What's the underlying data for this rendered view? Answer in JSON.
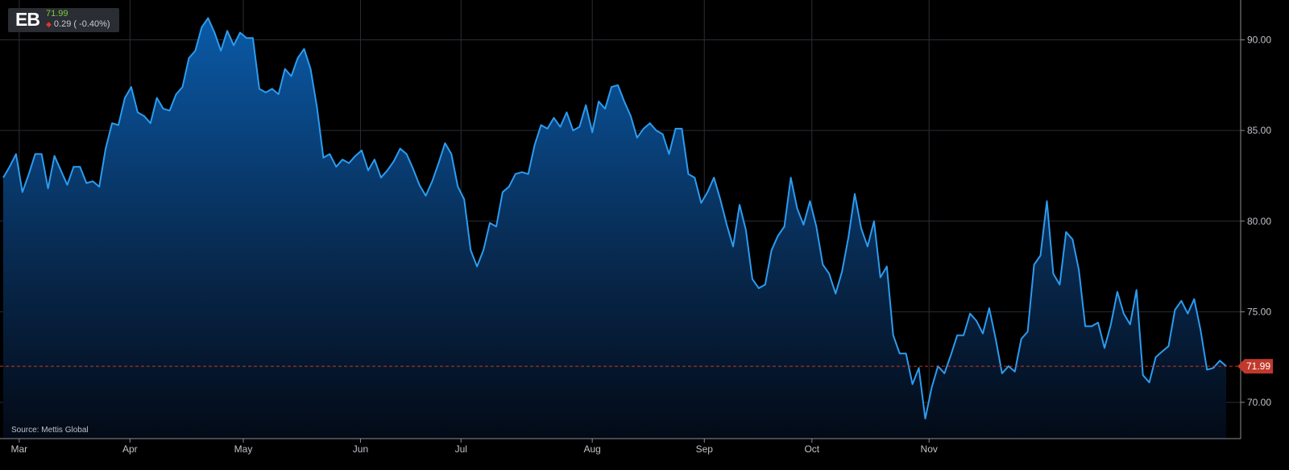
{
  "header": {
    "ticker": "EB",
    "last_price": "71.99",
    "change": "0.29",
    "change_pct": "( -0.40%)",
    "colors": {
      "up": "#7ecb38",
      "down": "#e0342c"
    }
  },
  "source": "Source: Mettis Global",
  "chart_data": {
    "type": "area",
    "title": "",
    "xlabel": "",
    "ylabel": "",
    "ylim": [
      68.0,
      92.2
    ],
    "y_ticks": [
      "70.00",
      "75.00",
      "80.00",
      "85.00",
      "90.00"
    ],
    "x_tick_labels": [
      "Mar",
      "Apr",
      "May",
      "Jun",
      "Jul",
      "Aug",
      "Sep",
      "Oct",
      "Nov"
    ],
    "y_axis_side": "right",
    "grid": true,
    "line_color": "#2b9cf0",
    "last_value_label": "71.99",
    "last_value_color": "#c0392b",
    "x_start_index": -0.5,
    "series": [
      {
        "values": [
          82.4,
          83.0,
          83.7,
          81.6,
          82.6,
          83.7,
          83.7,
          81.8,
          83.6,
          82.8,
          82.0,
          83.0,
          83.0,
          82.1,
          82.2,
          81.9,
          84.0,
          85.4,
          85.3,
          86.8,
          87.4,
          86.0,
          85.8,
          85.4,
          86.8,
          86.2,
          86.1,
          87.0,
          87.4,
          89.0,
          89.4,
          90.7,
          91.2,
          90.4,
          89.4,
          90.5,
          89.7,
          90.4,
          90.1,
          90.1,
          87.3,
          87.1,
          87.3,
          87.0,
          88.4,
          88.0,
          89.0,
          89.5,
          88.4,
          86.3,
          83.5,
          83.7,
          83.0,
          83.4,
          83.2,
          83.6,
          83.9,
          82.8,
          83.4,
          82.4,
          82.8,
          83.3,
          84.0,
          83.7,
          82.9,
          82.0,
          81.4,
          82.2,
          83.2,
          84.3,
          83.7,
          81.9,
          81.2,
          78.4,
          77.5,
          78.4,
          79.9,
          79.7,
          81.6,
          81.9,
          82.6,
          82.7,
          82.6,
          84.2,
          85.3,
          85.1,
          85.7,
          85.2,
          86.0,
          85.0,
          85.2,
          86.4,
          84.9,
          86.6,
          86.2,
          87.4,
          87.5,
          86.6,
          85.8,
          84.6,
          85.1,
          85.4,
          85.0,
          84.8,
          83.7,
          85.1,
          85.1,
          82.6,
          82.4,
          81.0,
          81.6,
          82.4,
          81.2,
          79.8,
          78.6,
          80.9,
          79.5,
          76.8,
          76.3,
          76.5,
          78.4,
          79.2,
          79.7,
          82.4,
          80.7,
          79.8,
          81.1,
          79.7,
          77.6,
          77.1,
          76.0,
          77.2,
          79.1,
          81.5,
          79.6,
          78.6,
          80.0,
          76.9,
          77.5,
          73.7,
          72.7,
          72.7,
          71.0,
          71.9,
          69.1,
          70.8,
          72.0,
          71.6,
          72.6,
          73.7,
          73.7,
          74.9,
          74.5,
          73.8,
          75.2,
          73.5,
          71.6,
          72.0,
          71.7,
          73.5,
          73.9,
          77.6,
          78.1,
          81.1,
          77.1,
          76.5,
          79.4,
          79.0,
          77.3,
          74.2,
          74.2,
          74.4,
          73.0,
          74.3,
          76.1,
          74.9,
          74.3,
          76.2,
          71.5,
          71.1,
          72.5,
          72.8,
          73.1,
          75.1,
          75.6,
          74.9,
          75.7,
          74.0,
          71.8,
          71.9,
          72.3,
          72.0
        ]
      }
    ],
    "month_starts": [
      2.5,
      19.8,
      37.5,
      55.8,
      71.5,
      92.0,
      109.5,
      126.3,
      144.6
    ]
  }
}
